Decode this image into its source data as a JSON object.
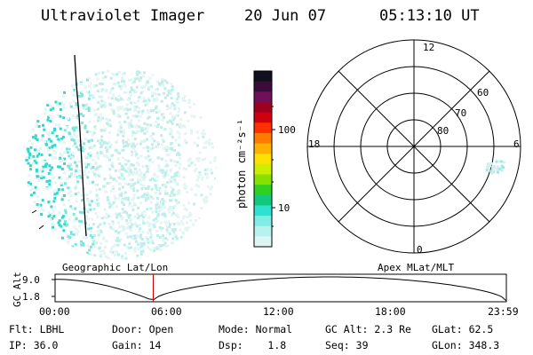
{
  "header": {
    "title": "Ultraviolet Imager",
    "date": "20 Jun 07",
    "time": "05:13:10 UT"
  },
  "left_panel": {
    "label": "Geographic Lat/Lon"
  },
  "colorbar": {
    "unit_label": "photon cm⁻²s⁻¹",
    "ticks": [
      "100",
      "10"
    ],
    "colors": [
      "#101020",
      "#3a0d3a",
      "#70105a",
      "#a00020",
      "#d00010",
      "#ff3000",
      "#ff7a00",
      "#ffb000",
      "#ffe000",
      "#ccee00",
      "#88e000",
      "#30d020",
      "#10c880",
      "#30e0d0",
      "#80ece4",
      "#b8f2ee",
      "#dcf6f4"
    ]
  },
  "right_panel": {
    "label": "Apex MLat/MLT",
    "mlt_labels": [
      "12",
      "18",
      "6",
      "0"
    ],
    "mlat_labels": [
      "60",
      "70",
      "80"
    ]
  },
  "timeline": {
    "ylabel": "GC Alt",
    "y_ticks": [
      "9.0",
      "1.8"
    ],
    "x_ticks": [
      "00:00",
      "06:00",
      "12:00",
      "18:00",
      "23:59"
    ],
    "marker_time_hours": 5.22,
    "accent": "#cc0000"
  },
  "info": {
    "r1": [
      {
        "k": "Flt:",
        "v": "LBHL"
      },
      {
        "k": "Door:",
        "v": "Open"
      },
      {
        "k": "Mode:",
        "v": "Normal"
      },
      {
        "k": "GC Alt:",
        "v": "2.3 Re"
      },
      {
        "k": "GLat:",
        "v": "62.5"
      }
    ],
    "r2": [
      {
        "k": "IP:",
        "v": "36.0"
      },
      {
        "k": "Gain:",
        "v": "14"
      },
      {
        "k": "Dsp:",
        "v": "1.8"
      },
      {
        "k": "Seq:",
        "v": "39"
      },
      {
        "k": "GLon:",
        "v": "348.3"
      }
    ]
  }
}
